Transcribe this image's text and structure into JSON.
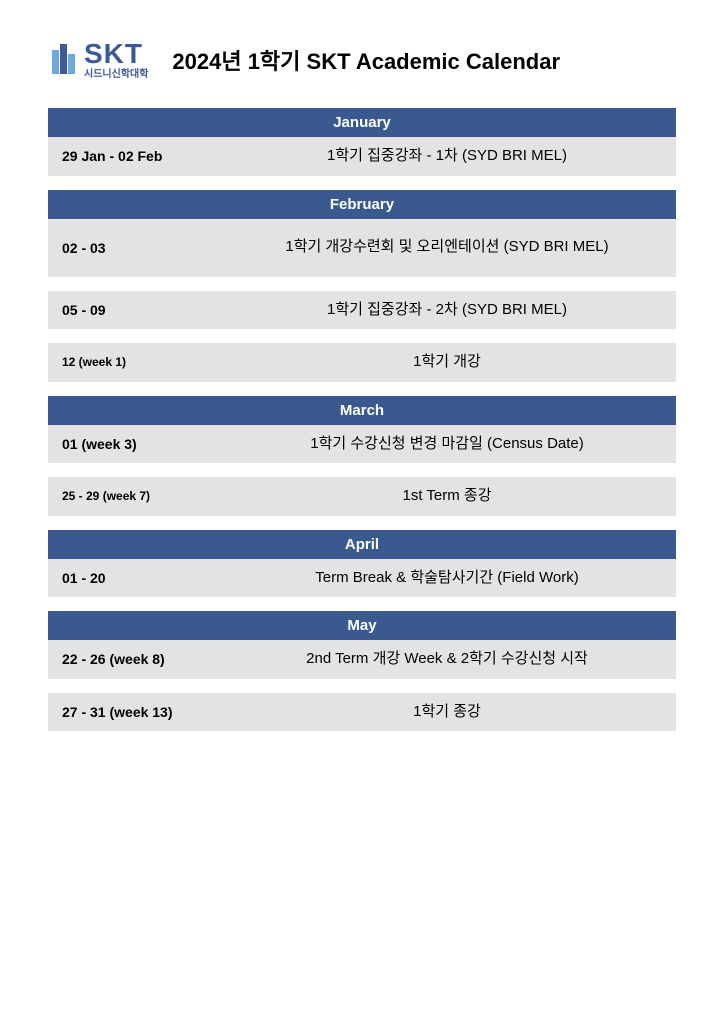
{
  "logo": {
    "main": "SKT",
    "sub": "시드니신학대학",
    "color": "#3b5998"
  },
  "title": "2024년 1학기 SKT Academic Calendar",
  "colors": {
    "header_bg": "#3a5a8f",
    "header_text": "#ffffff",
    "row_bg": "#e3e3e3",
    "page_bg": "#ffffff"
  },
  "months": [
    {
      "name": "January",
      "events": [
        {
          "date": "29 Jan - 02 Feb",
          "desc": "1학기 집중강좌 - 1차 (SYD BRI MEL)",
          "dateSmall": false
        }
      ]
    },
    {
      "name": "February",
      "events": [
        {
          "date": "02 - 03",
          "desc": "1학기 개강수련회 및 오리엔테이션 (SYD BRI MEL)",
          "dateSmall": false,
          "tall": true
        },
        {
          "date": "05 - 09",
          "desc": "1학기 집중강좌 - 2차 (SYD BRI MEL)",
          "dateSmall": false
        },
        {
          "date": "12 (week 1)",
          "desc": "1학기 개강",
          "dateSmall": true
        }
      ]
    },
    {
      "name": "March",
      "events": [
        {
          "date": "01 (week 3)",
          "desc": "1학기 수강신청 변경 마감일 (Census Date)",
          "dateSmall": false
        },
        {
          "date": "25 - 29 (week 7)",
          "desc": "1st Term 종강",
          "dateSmall": true
        }
      ]
    },
    {
      "name": "April",
      "events": [
        {
          "date": "01 - 20",
          "desc": "Term Break & 학술탐사기간 (Field Work)",
          "dateSmall": false
        }
      ]
    },
    {
      "name": "May",
      "events": [
        {
          "date": "22 - 26 (week 8)",
          "desc": "2nd Term 개강 Week & 2학기 수강신청 시작",
          "dateSmall": false
        },
        {
          "date": "27 - 31 (week 13)",
          "desc": "1학기 종강",
          "dateSmall": false
        }
      ]
    }
  ]
}
